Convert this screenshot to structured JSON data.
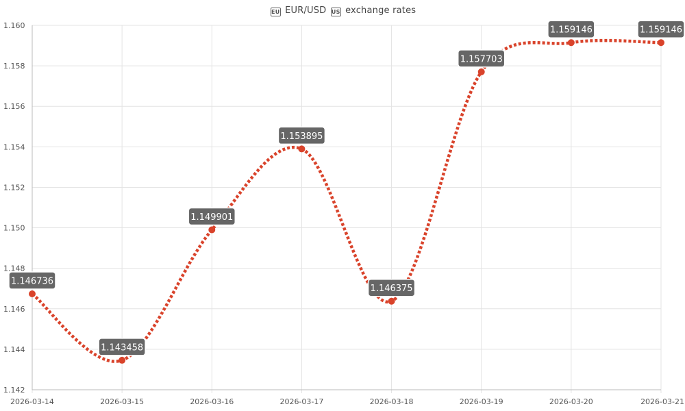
{
  "chart_data": {
    "type": "line",
    "title": "EUR/USD exchange rates",
    "title_icons": [
      "eu-flag-icon",
      "us-flag-icon"
    ],
    "x": [
      "2026-03-14",
      "2026-03-15",
      "2026-03-16",
      "2026-03-17",
      "2026-03-18",
      "2026-03-19",
      "2026-03-20",
      "2026-03-21"
    ],
    "series": [
      {
        "values": [
          1.146736,
          1.143458,
          1.149901,
          1.153895,
          1.146375,
          1.157703,
          1.159146,
          1.159146
        ],
        "labels": [
          "1.146736",
          "1.143458",
          "1.149901",
          "1.153895",
          "1.146375",
          "1.157703",
          "1.159146",
          "1.159146"
        ],
        "color": "#d9432b",
        "line_style": "dotted",
        "smooth": true
      }
    ],
    "ylim": [
      1.142,
      1.16
    ],
    "yticks": [
      "1.160",
      "1.158",
      "1.156",
      "1.154",
      "1.152",
      "1.150",
      "1.148",
      "1.146",
      "1.144",
      "1.142"
    ],
    "ytick_values": [
      1.16,
      1.158,
      1.156,
      1.154,
      1.152,
      1.15,
      1.148,
      1.146,
      1.144,
      1.142
    ],
    "grid": true,
    "label_bg_color": "#666666",
    "grid_color": "#e3e3e3"
  }
}
